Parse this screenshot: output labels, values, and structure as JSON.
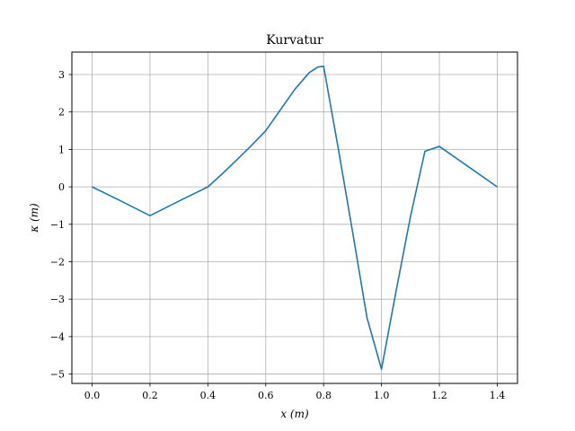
{
  "chart_data": {
    "type": "line",
    "title": "Kurvatur",
    "xlabel": "x (m)",
    "ylabel": "κ (m)",
    "xlim": [
      -0.07,
      1.47
    ],
    "ylim": [
      -5.25,
      3.6
    ],
    "grid": true,
    "x_ticks": [
      {
        "value": 0.0,
        "label": "0.0"
      },
      {
        "value": 0.2,
        "label": "0.2"
      },
      {
        "value": 0.4,
        "label": "0.4"
      },
      {
        "value": 0.6,
        "label": "0.6"
      },
      {
        "value": 0.8,
        "label": "0.8"
      },
      {
        "value": 1.0,
        "label": "1.0"
      },
      {
        "value": 1.2,
        "label": "1.2"
      },
      {
        "value": 1.4,
        "label": "1.4"
      }
    ],
    "y_ticks": [
      {
        "value": 3,
        "label": "3"
      },
      {
        "value": 2,
        "label": "2"
      },
      {
        "value": 1,
        "label": "1"
      },
      {
        "value": 0,
        "label": "0"
      },
      {
        "value": -1,
        "label": "−1"
      },
      {
        "value": -2,
        "label": "−2"
      },
      {
        "value": -3,
        "label": "−3"
      },
      {
        "value": -4,
        "label": "−4"
      },
      {
        "value": -5,
        "label": "−5"
      }
    ],
    "series": [
      {
        "color": "#1f77b4",
        "x": [
          0.0,
          0.1,
          0.2,
          0.3,
          0.4,
          0.45,
          0.5,
          0.55,
          0.6,
          0.65,
          0.7,
          0.75,
          0.78,
          0.8,
          0.85,
          0.9,
          0.95,
          1.0,
          1.05,
          1.1,
          1.15,
          1.2,
          1.3,
          1.4
        ],
        "y": [
          0.0,
          -0.38,
          -0.77,
          -0.38,
          0.0,
          0.35,
          0.72,
          1.1,
          1.5,
          2.05,
          2.6,
          3.05,
          3.2,
          3.22,
          1.05,
          -1.2,
          -3.5,
          -4.87,
          -2.8,
          -0.8,
          0.95,
          1.08,
          0.54,
          0.0
        ]
      }
    ]
  }
}
